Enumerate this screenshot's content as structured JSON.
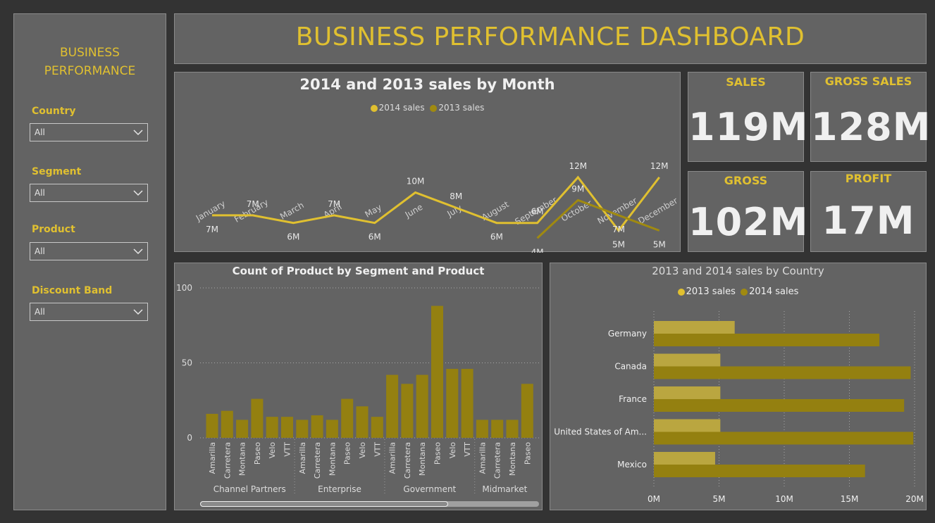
{
  "dashboard_title": "BUSINESS PERFORMANCE DASHBOARD",
  "sidebar": {
    "title_line1": "BUSINESS",
    "title_line2": "PERFORMANCE",
    "slicers": [
      {
        "label": "Country",
        "value": "All"
      },
      {
        "label": "Segment",
        "value": "All"
      },
      {
        "label": "Product",
        "value": "All"
      },
      {
        "label": "Discount Band",
        "value": "All"
      }
    ]
  },
  "cards": [
    {
      "title": "SALES",
      "value": "119M"
    },
    {
      "title": "GROSS SALES",
      "value": "128M"
    },
    {
      "title": "GROSS",
      "value": "102M"
    },
    {
      "title": "PROFIT",
      "value": "17M"
    }
  ],
  "colors": {
    "accent": "#e0c030",
    "series_2013": "#a08a10",
    "bar": "#948010",
    "bar_light": "#baa640"
  },
  "chart_data": [
    {
      "type": "line",
      "title": "2014 and 2013 sales by Month",
      "categories": [
        "January",
        "February",
        "March",
        "April",
        "May",
        "June",
        "July",
        "August",
        "September",
        "October",
        "November",
        "December"
      ],
      "series": [
        {
          "name": "2014 sales",
          "values": [
            7,
            7,
            6,
            7,
            6,
            10,
            8,
            6,
            6,
            12,
            5,
            12
          ],
          "labels": [
            "7M",
            "7M",
            "6M",
            "7M",
            "6M",
            "10M",
            "8M",
            "6M",
            "6M",
            "12M",
            "5M",
            "12M"
          ]
        },
        {
          "name": "2013 sales",
          "values": [
            null,
            null,
            null,
            null,
            null,
            null,
            null,
            null,
            4,
            9,
            7,
            5
          ],
          "labels": [
            "",
            "",
            "",
            "",
            "",
            "",
            "",
            "",
            "4M",
            "9M",
            "7M",
            "5M"
          ]
        }
      ],
      "legend": "top-center"
    },
    {
      "type": "bar",
      "title": "Count of Product by Segment and Product",
      "yticks": [
        "100",
        "50",
        "0"
      ],
      "ylim": [
        0,
        100
      ],
      "groups": [
        {
          "name": "Channel Partners",
          "categories": [
            "Amarilla",
            "Carretera",
            "Montana",
            "Paseo",
            "Velo",
            "VTT"
          ],
          "values": [
            16,
            18,
            12,
            26,
            14,
            14
          ]
        },
        {
          "name": "Enterprise",
          "categories": [
            "Amarilla",
            "Carretera",
            "Montana",
            "Paseo",
            "Velo",
            "VTT"
          ],
          "values": [
            12,
            15,
            12,
            26,
            21,
            14
          ]
        },
        {
          "name": "Government",
          "categories": [
            "Amarilla",
            "Carretera",
            "Montana",
            "Paseo",
            "Velo",
            "VTT"
          ],
          "values": [
            42,
            36,
            42,
            88,
            46,
            46
          ]
        },
        {
          "name": "Midmarket",
          "categories": [
            "Amarilla",
            "Carretera",
            "Montana",
            "Paseo"
          ],
          "values": [
            12,
            12,
            12,
            36
          ]
        }
      ]
    },
    {
      "type": "bar",
      "orientation": "horizontal",
      "title": "2013 and 2014 sales by Country",
      "categories": [
        "Germany",
        "Canada",
        "France",
        "United States of Am...",
        "Mexico"
      ],
      "series": [
        {
          "name": "2013 sales",
          "values": [
            6.2,
            5.1,
            5.1,
            5.1,
            4.7
          ]
        },
        {
          "name": "2014 sales",
          "values": [
            17.3,
            19.7,
            19.2,
            19.9,
            16.2
          ]
        }
      ],
      "xticks": [
        "0M",
        "5M",
        "10M",
        "15M",
        "20M"
      ],
      "xlim": [
        0,
        20
      ],
      "legend": "top-center"
    }
  ]
}
